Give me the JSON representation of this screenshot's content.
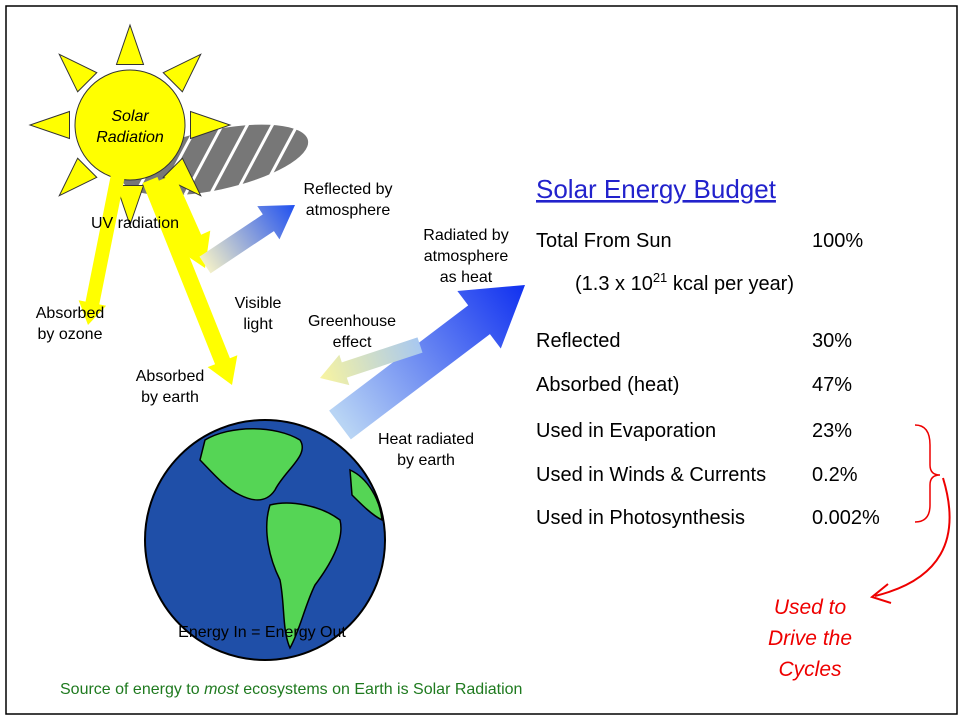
{
  "sun": {
    "label_lines": [
      "Solar",
      "Radiation"
    ]
  },
  "labels": {
    "uv": [
      "UV radiation"
    ],
    "reflected": [
      "Reflected by",
      "atmosphere"
    ],
    "radiated": [
      "Radiated by",
      "atmosphere",
      "as heat"
    ],
    "ozone": [
      "Absorbed",
      "by ozone"
    ],
    "visible": [
      "Visible",
      "light"
    ],
    "greenhouse": [
      "Greenhouse",
      "effect"
    ],
    "earth_absorbed": [
      "Absorbed",
      "by earth"
    ],
    "heat_earth": [
      "Heat radiated",
      "by earth"
    ]
  },
  "balance": "Energy In = Energy Out",
  "footer": {
    "prefix": "Source of energy to ",
    "emphasis": "most",
    "suffix": " ecosystems on Earth is Solar Radiation"
  },
  "budget": {
    "title": "Solar Energy Budget",
    "total": {
      "label": "Total From Sun",
      "value": "100%"
    },
    "note": {
      "prefix": "(1.3 x 10",
      "exponent": "21",
      "suffix": " kcal per year)"
    },
    "rows": [
      {
        "label": "Reflected",
        "value": "30%"
      },
      {
        "label": "Absorbed (heat)",
        "value": "47%"
      },
      {
        "label": "Used in Evaporation",
        "value": "23%"
      },
      {
        "label": "Used in Winds & Currents",
        "value": "0.2%"
      },
      {
        "label": "Used in Photosynthesis",
        "value": "0.002%"
      }
    ]
  },
  "cycles_lines": [
    "Used to",
    "Drive the",
    "Cycles"
  ]
}
